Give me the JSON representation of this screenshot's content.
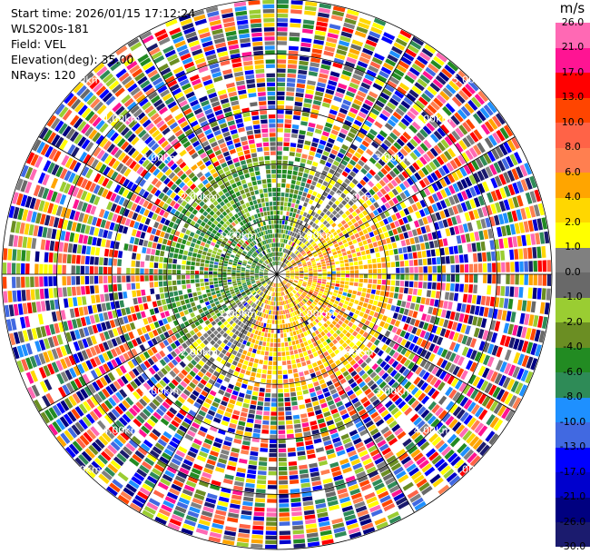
{
  "header": {
    "start_time": "Start time: 2026/01/15 17:12:24",
    "instrument": "WLS200s-181",
    "field": "Field: VEL",
    "elevation": "Elevation(deg): 35.00",
    "nrays": "NRays: 120"
  },
  "chart_data": {
    "type": "heatmap",
    "projection": "polar (PPI scan)",
    "field": "VEL",
    "unit": "m/s",
    "elevation_deg": 35.0,
    "n_rays": 120,
    "range_rings_km": [
      1,
      2,
      3,
      4,
      5
    ],
    "range_ring_labels": [
      "1.00km",
      "2.00km",
      "3.00km",
      "4.00km",
      "5.00km"
    ],
    "grid": true,
    "colorbar": {
      "placement": "right",
      "levels": [
        -30.0,
        -26.0,
        -21.0,
        -17.0,
        -13.0,
        -10.0,
        -8.0,
        -6.0,
        -4.0,
        -2.0,
        -1.0,
        0.0,
        1.0,
        2.0,
        4.0,
        6.0,
        8.0,
        10.0,
        13.0,
        17.0,
        21.0,
        26.0
      ],
      "tick_labels": [
        "-30.0",
        "-26.0",
        "-21.0",
        "-17.0",
        "-13.0",
        "-10.0",
        "-8.0",
        "-6.0",
        "-4.0",
        "-2.0",
        "-1.0",
        "0.0",
        "1.0",
        "2.0",
        "4.0",
        "6.0",
        "8.0",
        "10.0",
        "13.0",
        "17.0",
        "21.0",
        "26.0"
      ],
      "colors": [
        "#1b1b6e",
        "#000080",
        "#0000cd",
        "#0000ff",
        "#4169e1",
        "#1e90ff",
        "#2e8b57",
        "#228b22",
        "#6b8e23",
        "#9acd32",
        "#696969",
        "#808080",
        "#ffff00",
        "#ffd700",
        "#ffa500",
        "#ff7f50",
        "#ff6347",
        "#ff4500",
        "#ff0000",
        "#ff1493",
        "#ff69b4"
      ]
    }
  },
  "colors": {
    "ring_line": "#000000",
    "background": "#ffffff",
    "label_text": "#ffffff"
  }
}
